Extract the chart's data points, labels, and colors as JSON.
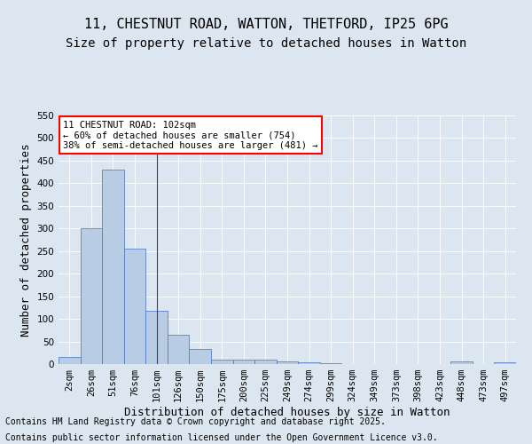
{
  "title_line1": "11, CHESTNUT ROAD, WATTON, THETFORD, IP25 6PG",
  "title_line2": "Size of property relative to detached houses in Watton",
  "xlabel": "Distribution of detached houses by size in Watton",
  "ylabel": "Number of detached properties",
  "bar_color": "#b8cce4",
  "bar_edge_color": "#4472c4",
  "background_color": "#dce6f1",
  "plot_bg_color": "#dce6f1",
  "categories": [
    "2sqm",
    "26sqm",
    "51sqm",
    "76sqm",
    "101sqm",
    "126sqm",
    "150sqm",
    "175sqm",
    "200sqm",
    "225sqm",
    "249sqm",
    "274sqm",
    "299sqm",
    "324sqm",
    "349sqm",
    "373sqm",
    "398sqm",
    "423sqm",
    "448sqm",
    "473sqm",
    "497sqm"
  ],
  "values": [
    15,
    300,
    430,
    255,
    118,
    65,
    33,
    10,
    10,
    10,
    5,
    3,
    1,
    0,
    0,
    0,
    0,
    0,
    5,
    0,
    3
  ],
  "ylim": [
    0,
    550
  ],
  "yticks": [
    0,
    50,
    100,
    150,
    200,
    250,
    300,
    350,
    400,
    450,
    500,
    550
  ],
  "annotation_box_text": "11 CHESTNUT ROAD: 102sqm\n← 60% of detached houses are smaller (754)\n38% of semi-detached houses are larger (481) →",
  "annotation_box_color": "white",
  "annotation_box_edge_color": "red",
  "vline_x": 4,
  "vline_color": "#404040",
  "footer_line1": "Contains HM Land Registry data © Crown copyright and database right 2025.",
  "footer_line2": "Contains public sector information licensed under the Open Government Licence v3.0.",
  "footer_fontsize": 7,
  "title_fontsize1": 11,
  "title_fontsize2": 10,
  "xlabel_fontsize": 9,
  "ylabel_fontsize": 9,
  "tick_fontsize": 7.5
}
